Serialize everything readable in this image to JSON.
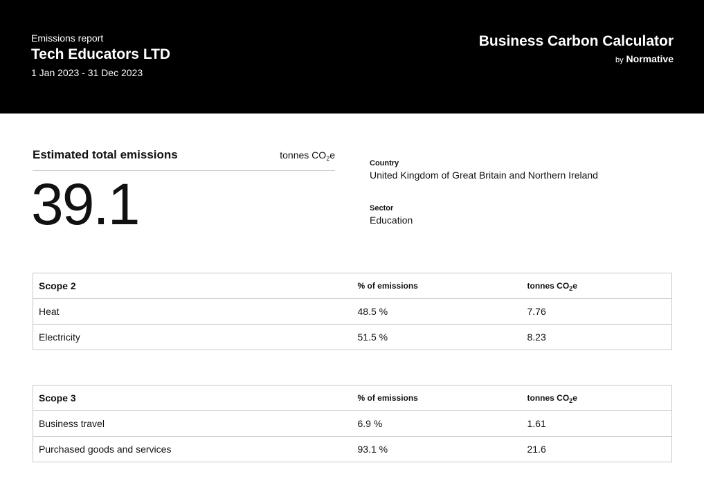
{
  "header": {
    "kicker": "Emissions report",
    "company": "Tech Educators LTD",
    "period": "1 Jan 2023 - 31 Dec 2023",
    "brand_title": "Business Carbon Calculator",
    "brand_by": "by",
    "brand_name": "Normative"
  },
  "total": {
    "label": "Estimated total emissions",
    "unit_prefix": "tonnes CO",
    "unit_sub": "2",
    "unit_suffix": "e",
    "value": "39.1"
  },
  "meta": {
    "country_label": "Country",
    "country_value": "United Kingdom of Great Britain and Northern Ireland",
    "sector_label": "Sector",
    "sector_value": "Education"
  },
  "scope2": {
    "title": "Scope 2",
    "col_pct": "% of emissions",
    "col_unit_prefix": "tonnes CO",
    "col_unit_sub": "2",
    "col_unit_suffix": "e",
    "rows": [
      {
        "name": "Heat",
        "pct": "48.5 %",
        "tonnes": "7.76"
      },
      {
        "name": "Electricity",
        "pct": "51.5 %",
        "tonnes": "8.23"
      }
    ]
  },
  "scope3": {
    "title": "Scope 3",
    "col_pct": "% of emissions",
    "col_unit_prefix": "tonnes CO",
    "col_unit_sub": "2",
    "col_unit_suffix": "e",
    "rows": [
      {
        "name": "Business travel",
        "pct": "6.9 %",
        "tonnes": "1.61"
      },
      {
        "name": "Purchased goods and services",
        "pct": "93.1 %",
        "tonnes": "21.6"
      }
    ]
  }
}
